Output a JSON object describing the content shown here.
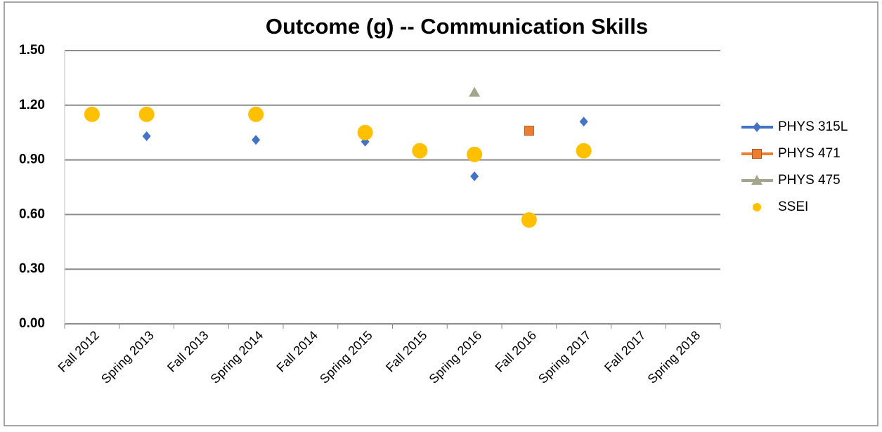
{
  "chart_data": {
    "type": "scatter",
    "title": "Outcome (g) -- Communication Skills",
    "categories": [
      "Fall 2012",
      "Spring 2013",
      "Fall 2013",
      "Spring 2014",
      "Fall 2014",
      "Spring 2015",
      "Fall 2015",
      "Spring 2016",
      "Fall 2016",
      "Spring 2017",
      "Fall 2017",
      "Spring 2018"
    ],
    "series": [
      {
        "name": "PHYS 315L",
        "color": "#4472c4",
        "marker": "diamond",
        "values": [
          null,
          1.03,
          null,
          1.01,
          null,
          1.0,
          null,
          0.81,
          null,
          1.11,
          null,
          null
        ]
      },
      {
        "name": "PHYS 471",
        "color": "#ed7d31",
        "marker": "square",
        "values": [
          null,
          null,
          null,
          null,
          null,
          null,
          null,
          null,
          1.06,
          null,
          null,
          null
        ]
      },
      {
        "name": "PHYS 475",
        "color": "#a5a58c",
        "marker": "triangle",
        "values": [
          null,
          null,
          null,
          null,
          null,
          null,
          null,
          1.27,
          null,
          null,
          null,
          null
        ]
      },
      {
        "name": "SSEI",
        "color": "#ffc000",
        "marker": "circle",
        "values": [
          1.15,
          1.15,
          null,
          1.15,
          null,
          1.05,
          0.95,
          0.93,
          0.57,
          0.95,
          null,
          null
        ]
      }
    ],
    "ylim": [
      0,
      1.5
    ],
    "yticks": [
      {
        "value": 0,
        "label": "0.00"
      },
      {
        "value": 0.3,
        "label": "0.30"
      },
      {
        "value": 0.6,
        "label": "0.60"
      },
      {
        "value": 0.9,
        "label": "0.90"
      },
      {
        "value": 1.2,
        "label": "1.20"
      },
      {
        "value": 1.5,
        "label": "1.50"
      }
    ],
    "grid": true,
    "legend": "right"
  }
}
